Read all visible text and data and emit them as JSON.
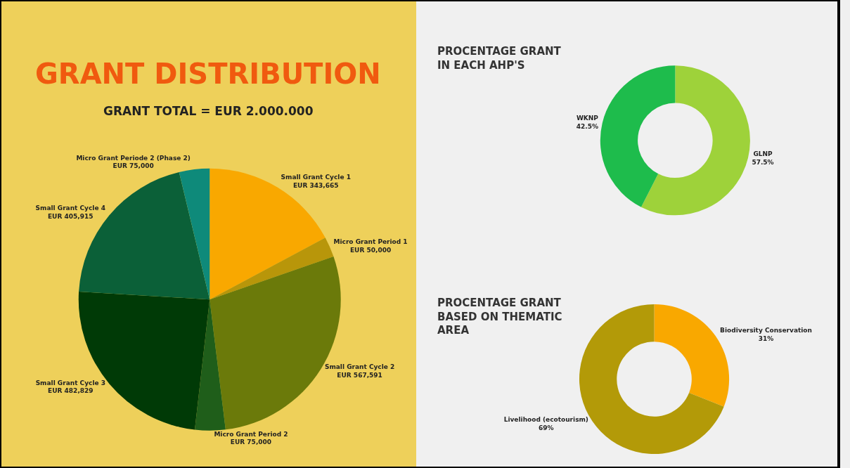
{
  "chart_data": [
    {
      "type": "pie",
      "title": "GRANT DISTRIBUTION",
      "subtitle": "GRANT TOTAL = EUR 2.000.000",
      "categories": [
        "Small Grant Cycle 1",
        "Micro Grant Period 1",
        "Small Grant Cycle 2",
        "Micro Grant Period 2",
        "Small Grant Cycle 3",
        "Small Grant Cycle 4",
        "Micro Grant Periode 2 (Phase 2)"
      ],
      "values": [
        343665,
        50000,
        567591,
        75000,
        482829,
        405915,
        75000
      ],
      "value_labels": [
        "EUR 343,665",
        "EUR 50,000",
        "EUR 567,591",
        "EUR 75,000",
        "EUR 482,829",
        "EUR 405,915",
        "EUR 75,000"
      ],
      "colors": [
        "#f9a800",
        "#b8960a",
        "#6b7a0a",
        "#1f5e1a",
        "#003a06",
        "#0b6038",
        "#0e8a7a"
      ]
    },
    {
      "type": "donut",
      "title": "PROCENTAGE GRANT\nIN EACH AHP'S",
      "categories": [
        "GLNP",
        "WKNP"
      ],
      "values": [
        57.5,
        42.5
      ],
      "value_labels": [
        "57.5%",
        "42.5%"
      ],
      "colors": [
        "#9ed23a",
        "#1ebc4c"
      ]
    },
    {
      "type": "donut",
      "title": "PROCENTAGE GRANT\nBASED ON THEMATIC\nAREA",
      "categories": [
        "Biodiversity Conservation",
        "Livelihood (ecotourism)"
      ],
      "values": [
        31,
        69
      ],
      "value_labels": [
        "31%",
        "69%"
      ],
      "colors": [
        "#f9a800",
        "#b39a08"
      ]
    }
  ]
}
